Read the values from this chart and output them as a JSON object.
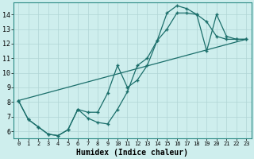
{
  "xlabel": "Humidex (Indice chaleur)",
  "background_color": "#ceeeed",
  "line_color": "#1a6e6a",
  "grid_color": "#b0d5d5",
  "xlim": [
    -0.5,
    23.5
  ],
  "ylim": [
    5.5,
    14.8
  ],
  "xticks": [
    0,
    1,
    2,
    3,
    4,
    5,
    6,
    7,
    8,
    9,
    10,
    11,
    12,
    13,
    14,
    15,
    16,
    17,
    18,
    19,
    20,
    21,
    22,
    23
  ],
  "yticks": [
    6,
    7,
    8,
    9,
    10,
    11,
    12,
    13,
    14
  ],
  "line1_x": [
    0,
    1,
    2,
    3,
    4,
    5,
    6,
    7,
    8,
    9,
    10,
    11,
    12,
    13,
    14,
    15,
    16,
    17,
    18,
    19,
    20,
    21,
    22,
    23
  ],
  "line1_y": [
    8.1,
    6.8,
    6.3,
    5.8,
    5.7,
    6.1,
    7.5,
    6.9,
    6.6,
    6.5,
    7.5,
    8.7,
    10.5,
    11.0,
    12.2,
    13.0,
    14.1,
    14.1,
    14.0,
    13.5,
    12.5,
    12.3,
    12.3,
    12.3
  ],
  "line2_x": [
    0,
    1,
    2,
    3,
    4,
    5,
    6,
    7,
    8,
    9,
    10,
    11,
    12,
    13,
    14,
    15,
    16,
    17,
    18,
    19,
    20,
    21,
    22,
    23
  ],
  "line2_y": [
    8.1,
    6.8,
    6.3,
    5.8,
    5.7,
    6.1,
    7.5,
    7.3,
    7.3,
    8.6,
    10.5,
    9.0,
    9.5,
    10.5,
    12.2,
    14.1,
    14.6,
    14.4,
    14.0,
    11.5,
    14.0,
    12.5,
    12.3,
    12.3
  ],
  "line3_x": [
    0,
    23
  ],
  "line3_y": [
    8.1,
    12.3
  ],
  "markersize": 2.0,
  "linewidth": 0.9,
  "font_family": "monospace",
  "xlabel_fontsize": 7,
  "tick_fontsize_x": 5,
  "tick_fontsize_y": 6
}
